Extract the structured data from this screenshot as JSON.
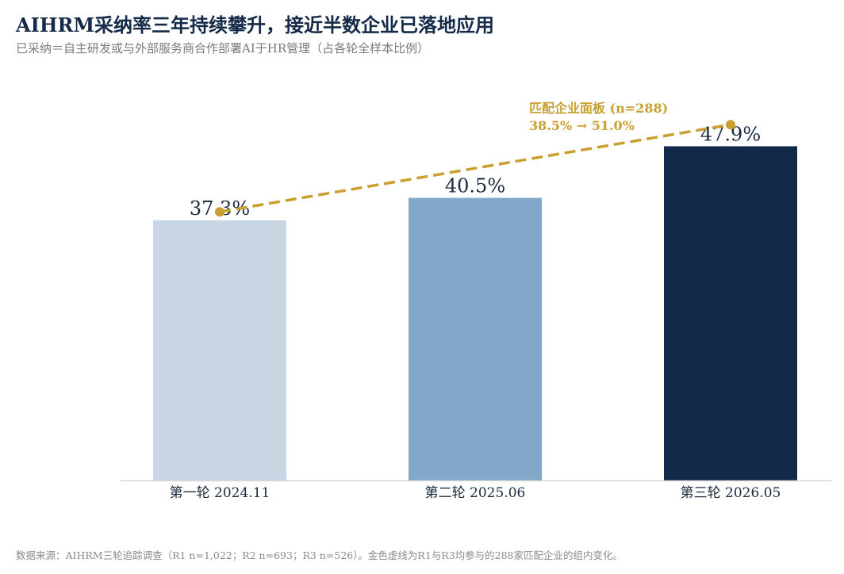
{
  "title": "AIHRM采纳率三年持续攀升，接近半数企业已落地应用",
  "subtitle": "已采纳＝自主研发或与外部服务商合作部署AI于HR管理（占各轮全样本比例）",
  "footer": "数据来源：AIHRM三轮追踪调查（R1 n=1,022；R2 n=693；R3 n=526）。金色虚线为R1与R3均参与的288家匹配企业的组内变化。",
  "colors": {
    "bar_r1": "#c9d7e5",
    "bar_r2": "#82a8c9",
    "bar_r3": "#13294a",
    "gold": "#c9a030",
    "axis": "#d8d8d8",
    "label_text": "#1a2a3f"
  },
  "chart_data": {
    "type": "bar",
    "categories": [
      "第一轮 2024.11",
      "第二轮 2025.06",
      "第三轮 2026.05"
    ],
    "series": [
      {
        "values": [
          37.3,
          40.5,
          47.9
        ]
      }
    ],
    "value_labels": [
      "37.3%",
      "40.5%",
      "47.9%"
    ],
    "ylim": [
      0,
      55
    ],
    "grid": false,
    "overlay_line": {
      "style": "dashed",
      "points": [
        {
          "category": "第一轮 2024.11",
          "value": 38.5
        },
        {
          "category": "第三轮 2026.05",
          "value": 51.0
        }
      ],
      "annotation_title": "匹配企业面板 (n=288)",
      "annotation_values": "38.5% → 51.0%"
    }
  }
}
